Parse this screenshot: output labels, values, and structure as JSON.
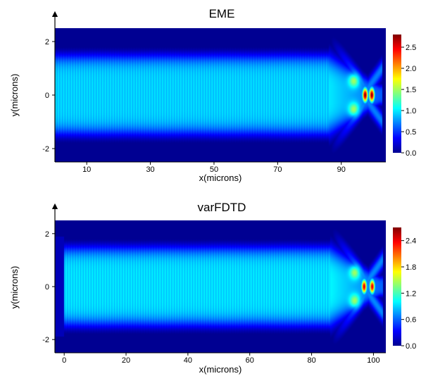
{
  "chart_data": [
    {
      "type": "heatmap",
      "title": "EME",
      "xlabel": "x(microns)",
      "ylabel": "y(microns)",
      "xlim": [
        0,
        104
      ],
      "ylim": [
        -2.5,
        2.5
      ],
      "x_ticks": [
        10,
        30,
        50,
        70,
        90
      ],
      "y_ticks": [
        -2,
        0,
        2
      ],
      "colorbar": {
        "min": 0.0,
        "max": 2.8,
        "ticks": [
          "0.0",
          "0.5",
          "1.0",
          "1.5",
          "2.0",
          "2.5"
        ],
        "colormap": "jet"
      },
      "field": {
        "core_halfwidth": 1.5,
        "core_value": 1.0,
        "taper_start_x": 86,
        "taper_end_x": 102,
        "hotspots": [
          {
            "x": 97.5,
            "y": 0,
            "value": 2.8
          },
          {
            "x": 99.6,
            "y": 0,
            "value": 2.8
          }
        ],
        "side_lobes_x": 94,
        "side_lobes_y": 0.55,
        "side_lobe_value": 1.3
      }
    },
    {
      "type": "heatmap",
      "title": "varFDTD",
      "xlabel": "x(microns)",
      "ylabel": "y(microns)",
      "xlim": [
        -3,
        104
      ],
      "ylim": [
        -2.5,
        2.5
      ],
      "x_ticks": [
        0,
        20,
        40,
        60,
        80,
        100
      ],
      "y_ticks": [
        -2,
        0,
        2
      ],
      "colorbar": {
        "min": 0.0,
        "max": 2.7,
        "ticks": [
          "0.0",
          "0.6",
          "1.2",
          "1.8",
          "2.4"
        ],
        "colormap": "jet"
      },
      "field": {
        "core_halfwidth": 1.5,
        "core_value": 1.0,
        "taper_start_x": 86,
        "taper_end_x": 102,
        "field_start_x": 0,
        "hotspots": [
          {
            "x": 97.0,
            "y": 0,
            "value": 2.5
          },
          {
            "x": 99.6,
            "y": 0,
            "value": 2.5
          }
        ],
        "side_lobes_x": 94,
        "side_lobes_y": 0.55,
        "side_lobe_value": 1.2
      }
    }
  ]
}
